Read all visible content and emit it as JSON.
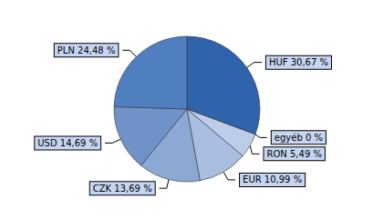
{
  "chart_data": {
    "type": "pie",
    "categories": [
      "HUF",
      "egyéb",
      "RON",
      "EUR",
      "CZK",
      "USD",
      "PLN"
    ],
    "values": [
      30.67,
      0,
      5.49,
      10.99,
      13.69,
      14.69,
      24.48
    ],
    "value_labels": [
      "HUF 30,67 %",
      "egyéb 0 %",
      "RON 5,49 %",
      "EUR 10,99 %",
      "CZK 13,69 %",
      "USD 14,69 %",
      "PLN 24,48 %"
    ],
    "colors": [
      "#2f64ad",
      "#c9d7ec",
      "#bccde8",
      "#a9bee0",
      "#8ca9d3",
      "#6f92c9",
      "#507fbf"
    ],
    "data_labels": true
  }
}
